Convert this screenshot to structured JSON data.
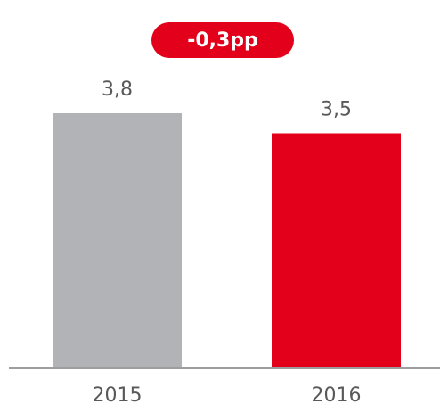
{
  "chart_data": {
    "type": "bar",
    "categories": [
      "2015",
      "2016"
    ],
    "values": [
      3.8,
      3.5
    ],
    "value_labels": [
      "3,8",
      "3,5"
    ],
    "colors": [
      "#b1b3b6",
      "#e2001a"
    ],
    "annotation": "-0,3pp",
    "annotation_color": "#e2001a"
  }
}
